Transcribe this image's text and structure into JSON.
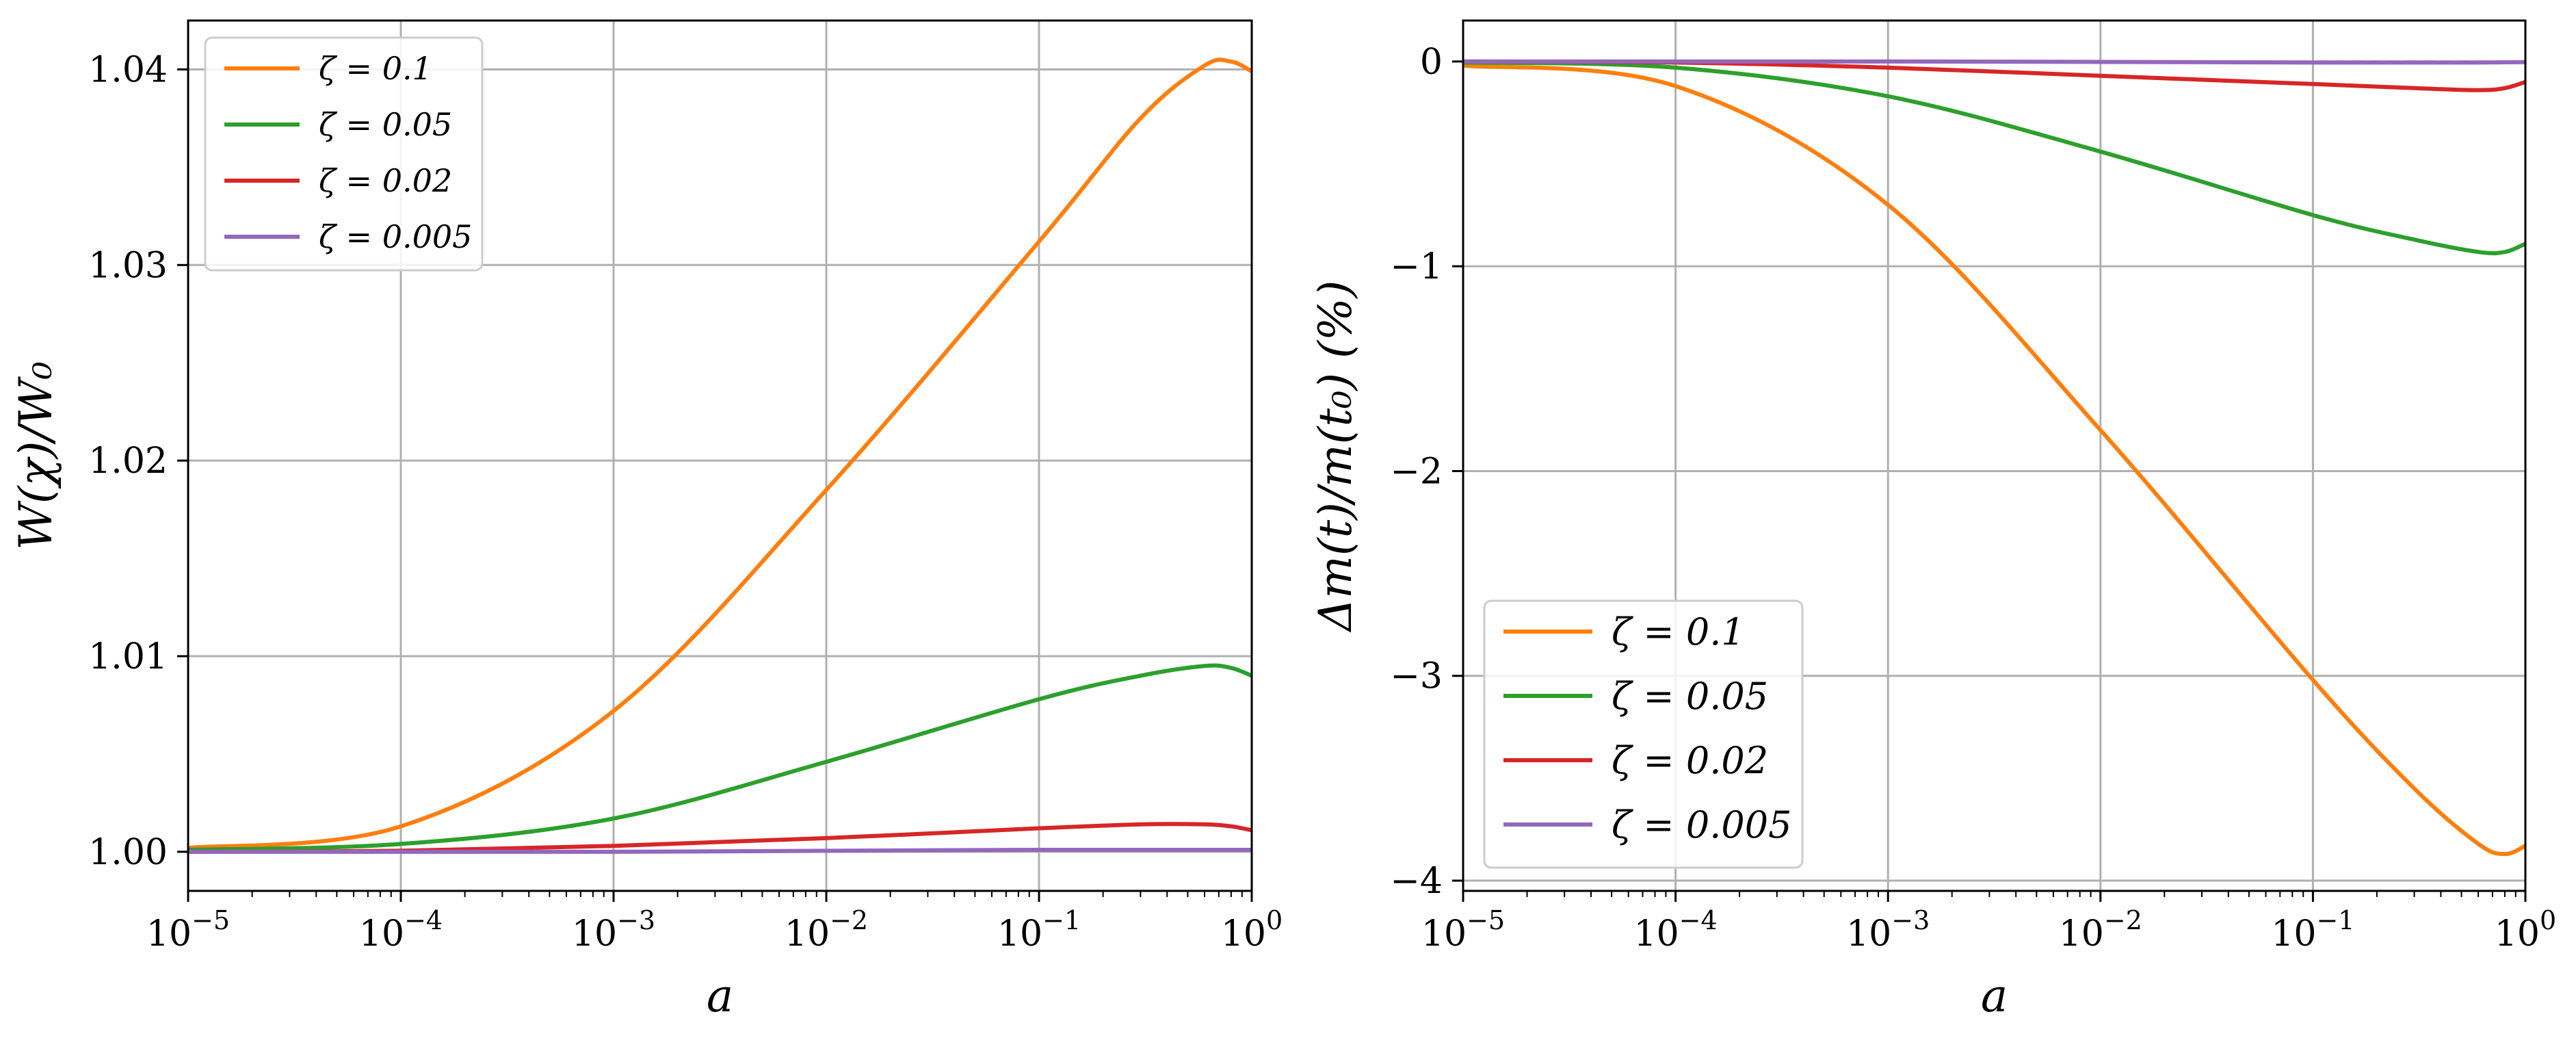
{
  "chart_data": [
    {
      "type": "line",
      "panel": "left",
      "xscale": "log",
      "xlabel": "a",
      "ylabel": "W(χ)/W₀",
      "xlim": [
        1e-05,
        1
      ],
      "ylim": [
        0.998,
        1.0425
      ],
      "x_tick_values": [
        1e-05,
        0.0001,
        0.001,
        0.01,
        0.1,
        1
      ],
      "x_tick_labels": [
        {
          "base": "10",
          "exp": "−5"
        },
        {
          "base": "10",
          "exp": "−4"
        },
        {
          "base": "10",
          "exp": "−3"
        },
        {
          "base": "10",
          "exp": "−2"
        },
        {
          "base": "10",
          "exp": "−1"
        },
        {
          "base": "10",
          "exp": "0"
        }
      ],
      "y_ticks": [
        1.0,
        1.01,
        1.02,
        1.03,
        1.04
      ],
      "y_tick_labels": [
        "1.00",
        "1.01",
        "1.02",
        "1.03",
        "1.04"
      ],
      "grid": true,
      "legend_position": "upper-left",
      "x": [
        1e-05,
        0.0001,
        0.001,
        0.01,
        0.1,
        0.3,
        0.6,
        0.8,
        1
      ],
      "series": [
        {
          "name": "ζ = 0.1",
          "color": "#ff7f0e",
          "values": [
            1.0002,
            1.0013,
            1.0072,
            1.0185,
            1.0312,
            1.0375,
            1.0402,
            1.0404,
            1.0399
          ]
        },
        {
          "name": "ζ = 0.05",
          "color": "#2ca02c",
          "values": [
            1.0001,
            1.0004,
            1.0017,
            1.0046,
            1.0078,
            1.009,
            1.0095,
            1.0094,
            1.009
          ]
        },
        {
          "name": "ζ = 0.02",
          "color": "#d62728",
          "values": [
            1.0,
            1.00005,
            1.0003,
            1.0007,
            1.0012,
            1.0014,
            1.0014,
            1.0013,
            1.0011
          ]
        },
        {
          "name": "ζ = 0.005",
          "color": "#9467bd",
          "values": [
            1.0,
            1.0,
            1.0,
            1.00005,
            1.0001,
            1.0001,
            1.0001,
            1.0001,
            1.0001
          ]
        }
      ]
    },
    {
      "type": "line",
      "panel": "right",
      "xscale": "log",
      "xlabel": "a",
      "ylabel": "Δm(t)/m(t₀)  (%)",
      "xlim": [
        1e-05,
        1
      ],
      "ylim": [
        -4.05,
        0.2
      ],
      "x_tick_values": [
        1e-05,
        0.0001,
        0.001,
        0.01,
        0.1,
        1
      ],
      "x_tick_labels": [
        {
          "base": "10",
          "exp": "−5"
        },
        {
          "base": "10",
          "exp": "−4"
        },
        {
          "base": "10",
          "exp": "−3"
        },
        {
          "base": "10",
          "exp": "−2"
        },
        {
          "base": "10",
          "exp": "−1"
        },
        {
          "base": "10",
          "exp": "0"
        }
      ],
      "y_ticks": [
        0,
        -1,
        -2,
        -3,
        -4
      ],
      "y_tick_labels": [
        "0",
        "−1",
        "−2",
        "−3",
        "−4"
      ],
      "grid": true,
      "legend_position": "lower-left",
      "reference_line": {
        "y": 0,
        "style": "dashed",
        "color": "#555555"
      },
      "x": [
        1e-05,
        0.0001,
        0.001,
        0.01,
        0.1,
        0.3,
        0.6,
        0.8,
        1
      ],
      "series": [
        {
          "name": "ζ = 0.1",
          "color": "#ff7f0e",
          "values": [
            -0.02,
            -0.12,
            -0.7,
            -1.8,
            -3.02,
            -3.55,
            -3.82,
            -3.87,
            -3.83
          ]
        },
        {
          "name": "ζ = 0.05",
          "color": "#2ca02c",
          "values": [
            -0.005,
            -0.03,
            -0.17,
            -0.44,
            -0.75,
            -0.87,
            -0.93,
            -0.93,
            -0.89
          ]
        },
        {
          "name": "ζ = 0.02",
          "color": "#d62728",
          "values": [
            0,
            -0.005,
            -0.03,
            -0.07,
            -0.11,
            -0.13,
            -0.14,
            -0.13,
            -0.1
          ]
        },
        {
          "name": "ζ = 0.005",
          "color": "#9467bd",
          "values": [
            0,
            0,
            0,
            -0.002,
            -0.005,
            -0.005,
            -0.005,
            -0.004,
            -0.003
          ]
        }
      ]
    }
  ]
}
